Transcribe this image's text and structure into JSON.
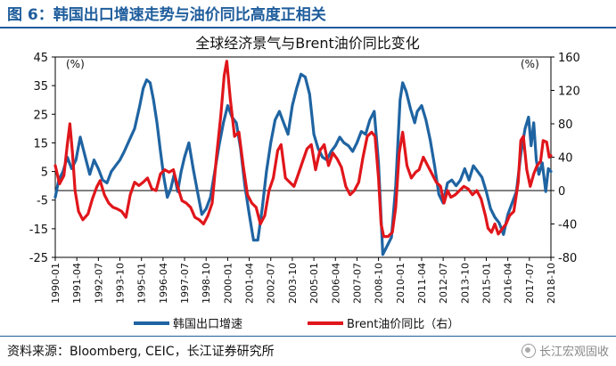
{
  "header": {
    "figure_title": "图 6：韩国出口增速走势与油价同比高度正相关"
  },
  "footer": {
    "source": "资料来源：Bloomberg, CEIC，长江证券研究所",
    "watermark": "长江宏观固收"
  },
  "colors": {
    "title": "#1f5d9c",
    "export_series": "#1f64a2",
    "oil_series": "#e0161b"
  },
  "chart_data": {
    "type": "line",
    "title": "全球经济景气与Brent油价同比变化",
    "left_axis": {
      "unit_label": "(%)",
      "range": [
        -25,
        45
      ],
      "ticks": [
        -25,
        -15,
        -5,
        5,
        15,
        25,
        35,
        45
      ]
    },
    "right_axis": {
      "unit_label": "(%)",
      "range": [
        -80,
        160
      ],
      "ticks": [
        -80,
        -40,
        0,
        40,
        80,
        120,
        160
      ]
    },
    "x_range": [
      1990.0,
      2018.75
    ],
    "x_ticks": [
      {
        "label": "1990-01",
        "t": 1990.0
      },
      {
        "label": "1991-04",
        "t": 1991.25
      },
      {
        "label": "1992-07",
        "t": 1992.5
      },
      {
        "label": "1993-10",
        "t": 1993.75
      },
      {
        "label": "1995-01",
        "t": 1995.0
      },
      {
        "label": "1996-04",
        "t": 1996.25
      },
      {
        "label": "1997-07",
        "t": 1997.5
      },
      {
        "label": "1998-10",
        "t": 1998.75
      },
      {
        "label": "2000-01",
        "t": 2000.0
      },
      {
        "label": "2001-04",
        "t": 2001.25
      },
      {
        "label": "2002-07",
        "t": 2002.5
      },
      {
        "label": "2003-10",
        "t": 2003.75
      },
      {
        "label": "2005-01",
        "t": 2005.0
      },
      {
        "label": "2006-04",
        "t": 2006.25
      },
      {
        "label": "2007-07",
        "t": 2007.5
      },
      {
        "label": "2008-10",
        "t": 2008.75
      },
      {
        "label": "2010-01",
        "t": 2010.0
      },
      {
        "label": "2011-04",
        "t": 2011.25
      },
      {
        "label": "2012-07",
        "t": 2012.5
      },
      {
        "label": "2013-10",
        "t": 2013.75
      },
      {
        "label": "2015-01",
        "t": 2015.0
      },
      {
        "label": "2016-04",
        "t": 2016.25
      },
      {
        "label": "2017-07",
        "t": 2017.5
      },
      {
        "label": "2018-10",
        "t": 2018.75
      }
    ],
    "series": [
      {
        "name": "韩国出口增速",
        "axis": "left",
        "points": [
          [
            1990.0,
            -4
          ],
          [
            1990.2,
            2
          ],
          [
            1990.45,
            5
          ],
          [
            1990.7,
            10
          ],
          [
            1990.95,
            6
          ],
          [
            1991.2,
            9
          ],
          [
            1991.45,
            17
          ],
          [
            1991.7,
            11
          ],
          [
            1992.0,
            4
          ],
          [
            1992.25,
            9
          ],
          [
            1992.5,
            6
          ],
          [
            1992.75,
            2
          ],
          [
            1993.0,
            1
          ],
          [
            1993.25,
            5
          ],
          [
            1993.5,
            7
          ],
          [
            1993.75,
            9
          ],
          [
            1994.0,
            12
          ],
          [
            1994.3,
            16
          ],
          [
            1994.6,
            20
          ],
          [
            1994.9,
            28
          ],
          [
            1995.1,
            34
          ],
          [
            1995.3,
            37
          ],
          [
            1995.5,
            36
          ],
          [
            1995.7,
            30
          ],
          [
            1995.9,
            22
          ],
          [
            1996.1,
            12
          ],
          [
            1996.3,
            3
          ],
          [
            1996.5,
            -4
          ],
          [
            1996.7,
            -1
          ],
          [
            1996.9,
            4
          ],
          [
            1997.1,
            -2
          ],
          [
            1997.3,
            5
          ],
          [
            1997.5,
            10
          ],
          [
            1997.75,
            15
          ],
          [
            1998.0,
            6
          ],
          [
            1998.25,
            -2
          ],
          [
            1998.5,
            -10
          ],
          [
            1998.75,
            -8
          ],
          [
            1999.0,
            -4
          ],
          [
            1999.25,
            5
          ],
          [
            1999.5,
            14
          ],
          [
            1999.75,
            22
          ],
          [
            2000.0,
            28
          ],
          [
            2000.25,
            24
          ],
          [
            2000.5,
            22
          ],
          [
            2000.75,
            13
          ],
          [
            2001.0,
            0
          ],
          [
            2001.25,
            -10
          ],
          [
            2001.5,
            -19
          ],
          [
            2001.75,
            -19
          ],
          [
            2002.0,
            -8
          ],
          [
            2002.25,
            5
          ],
          [
            2002.5,
            15
          ],
          [
            2002.75,
            23
          ],
          [
            2003.0,
            26
          ],
          [
            2003.25,
            22
          ],
          [
            2003.5,
            18
          ],
          [
            2003.75,
            28
          ],
          [
            2004.0,
            34
          ],
          [
            2004.25,
            39
          ],
          [
            2004.5,
            38
          ],
          [
            2004.75,
            32
          ],
          [
            2005.0,
            18
          ],
          [
            2005.25,
            13
          ],
          [
            2005.5,
            10
          ],
          [
            2005.75,
            9
          ],
          [
            2006.0,
            12
          ],
          [
            2006.25,
            14
          ],
          [
            2006.5,
            17
          ],
          [
            2006.75,
            15
          ],
          [
            2007.0,
            14
          ],
          [
            2007.25,
            12
          ],
          [
            2007.5,
            15
          ],
          [
            2007.75,
            19
          ],
          [
            2008.0,
            18
          ],
          [
            2008.25,
            23
          ],
          [
            2008.5,
            26
          ],
          [
            2008.75,
            8
          ],
          [
            2009.0,
            -24
          ],
          [
            2009.25,
            -21
          ],
          [
            2009.5,
            -18
          ],
          [
            2009.75,
            0
          ],
          [
            2010.0,
            30
          ],
          [
            2010.15,
            36
          ],
          [
            2010.35,
            33
          ],
          [
            2010.6,
            27
          ],
          [
            2010.85,
            22
          ],
          [
            2011.0,
            26
          ],
          [
            2011.25,
            28
          ],
          [
            2011.5,
            23
          ],
          [
            2011.75,
            16
          ],
          [
            2012.0,
            7
          ],
          [
            2012.25,
            -3
          ],
          [
            2012.5,
            -6
          ],
          [
            2012.75,
            1
          ],
          [
            2013.0,
            2
          ],
          [
            2013.25,
            0
          ],
          [
            2013.5,
            2
          ],
          [
            2013.75,
            6
          ],
          [
            2014.0,
            2
          ],
          [
            2014.25,
            7
          ],
          [
            2014.5,
            5
          ],
          [
            2014.75,
            3
          ],
          [
            2015.0,
            -2
          ],
          [
            2015.25,
            -8
          ],
          [
            2015.5,
            -11
          ],
          [
            2015.75,
            -13
          ],
          [
            2016.0,
            -17
          ],
          [
            2016.25,
            -10
          ],
          [
            2016.5,
            -6
          ],
          [
            2016.75,
            -2
          ],
          [
            2017.0,
            11
          ],
          [
            2017.25,
            20
          ],
          [
            2017.45,
            24
          ],
          [
            2017.6,
            14
          ],
          [
            2017.75,
            22
          ],
          [
            2017.9,
            9
          ],
          [
            2018.05,
            4
          ],
          [
            2018.25,
            8
          ],
          [
            2018.45,
            -2
          ],
          [
            2018.6,
            6
          ],
          [
            2018.75,
            5
          ]
        ]
      },
      {
        "name": "Brent油价同比（右）",
        "axis": "right",
        "points": [
          [
            1990.0,
            30
          ],
          [
            1990.25,
            8
          ],
          [
            1990.5,
            18
          ],
          [
            1990.7,
            55
          ],
          [
            1990.85,
            80
          ],
          [
            1991.0,
            45
          ],
          [
            1991.15,
            0
          ],
          [
            1991.35,
            -25
          ],
          [
            1991.6,
            -35
          ],
          [
            1991.9,
            -28
          ],
          [
            1992.15,
            -10
          ],
          [
            1992.4,
            4
          ],
          [
            1992.6,
            12
          ],
          [
            1992.85,
            -5
          ],
          [
            1993.1,
            -15
          ],
          [
            1993.35,
            -20
          ],
          [
            1993.6,
            -22
          ],
          [
            1993.85,
            -25
          ],
          [
            1994.1,
            -32
          ],
          [
            1994.35,
            -5
          ],
          [
            1994.6,
            10
          ],
          [
            1994.85,
            6
          ],
          [
            1995.1,
            10
          ],
          [
            1995.35,
            15
          ],
          [
            1995.6,
            2
          ],
          [
            1995.85,
            0
          ],
          [
            1996.1,
            20
          ],
          [
            1996.35,
            25
          ],
          [
            1996.6,
            22
          ],
          [
            1996.85,
            25
          ],
          [
            1997.1,
            5
          ],
          [
            1997.35,
            -12
          ],
          [
            1997.6,
            -15
          ],
          [
            1997.85,
            -20
          ],
          [
            1998.1,
            -32
          ],
          [
            1998.35,
            -35
          ],
          [
            1998.6,
            -40
          ],
          [
            1998.85,
            -30
          ],
          [
            1999.1,
            -15
          ],
          [
            1999.35,
            40
          ],
          [
            1999.6,
            90
          ],
          [
            1999.8,
            138
          ],
          [
            1999.95,
            155
          ],
          [
            2000.15,
            110
          ],
          [
            2000.4,
            65
          ],
          [
            2000.65,
            70
          ],
          [
            2000.9,
            30
          ],
          [
            2001.15,
            -5
          ],
          [
            2001.4,
            -15
          ],
          [
            2001.65,
            -20
          ],
          [
            2001.9,
            -40
          ],
          [
            2002.15,
            -30
          ],
          [
            2002.4,
            0
          ],
          [
            2002.65,
            15
          ],
          [
            2002.9,
            48
          ],
          [
            2003.1,
            55
          ],
          [
            2003.35,
            15
          ],
          [
            2003.6,
            10
          ],
          [
            2003.85,
            5
          ],
          [
            2004.1,
            20
          ],
          [
            2004.35,
            35
          ],
          [
            2004.6,
            50
          ],
          [
            2004.85,
            55
          ],
          [
            2005.1,
            25
          ],
          [
            2005.35,
            48
          ],
          [
            2005.6,
            55
          ],
          [
            2005.85,
            30
          ],
          [
            2006.1,
            45
          ],
          [
            2006.35,
            38
          ],
          [
            2006.6,
            28
          ],
          [
            2006.85,
            5
          ],
          [
            2007.1,
            -5
          ],
          [
            2007.35,
            0
          ],
          [
            2007.6,
            10
          ],
          [
            2007.85,
            40
          ],
          [
            2008.1,
            65
          ],
          [
            2008.35,
            70
          ],
          [
            2008.55,
            65
          ],
          [
            2008.75,
            15
          ],
          [
            2008.9,
            -40
          ],
          [
            2009.05,
            -55
          ],
          [
            2009.3,
            -55
          ],
          [
            2009.55,
            -50
          ],
          [
            2009.75,
            -20
          ],
          [
            2009.95,
            45
          ],
          [
            2010.15,
            70
          ],
          [
            2010.4,
            30
          ],
          [
            2010.65,
            15
          ],
          [
            2010.9,
            22
          ],
          [
            2011.1,
            25
          ],
          [
            2011.35,
            40
          ],
          [
            2011.6,
            30
          ],
          [
            2011.85,
            20
          ],
          [
            2012.1,
            10
          ],
          [
            2012.35,
            5
          ],
          [
            2012.55,
            -15
          ],
          [
            2012.75,
            0
          ],
          [
            2012.95,
            -8
          ],
          [
            2013.2,
            -5
          ],
          [
            2013.45,
            0
          ],
          [
            2013.7,
            5
          ],
          [
            2013.95,
            2
          ],
          [
            2014.2,
            -5
          ],
          [
            2014.45,
            0
          ],
          [
            2014.7,
            -10
          ],
          [
            2014.95,
            -30
          ],
          [
            2015.1,
            -45
          ],
          [
            2015.3,
            -50
          ],
          [
            2015.5,
            -40
          ],
          [
            2015.7,
            -52
          ],
          [
            2015.95,
            -45
          ],
          [
            2016.15,
            -40
          ],
          [
            2016.35,
            -30
          ],
          [
            2016.6,
            -25
          ],
          [
            2016.85,
            10
          ],
          [
            2017.0,
            60
          ],
          [
            2017.15,
            65
          ],
          [
            2017.35,
            25
          ],
          [
            2017.55,
            5
          ],
          [
            2017.75,
            20
          ],
          [
            2017.95,
            30
          ],
          [
            2018.15,
            35
          ],
          [
            2018.3,
            60
          ],
          [
            2018.5,
            58
          ],
          [
            2018.65,
            40
          ],
          [
            2018.75,
            42
          ]
        ]
      }
    ],
    "legend": [
      "韩国出口增速",
      "Brent油价同比（右）"
    ]
  }
}
